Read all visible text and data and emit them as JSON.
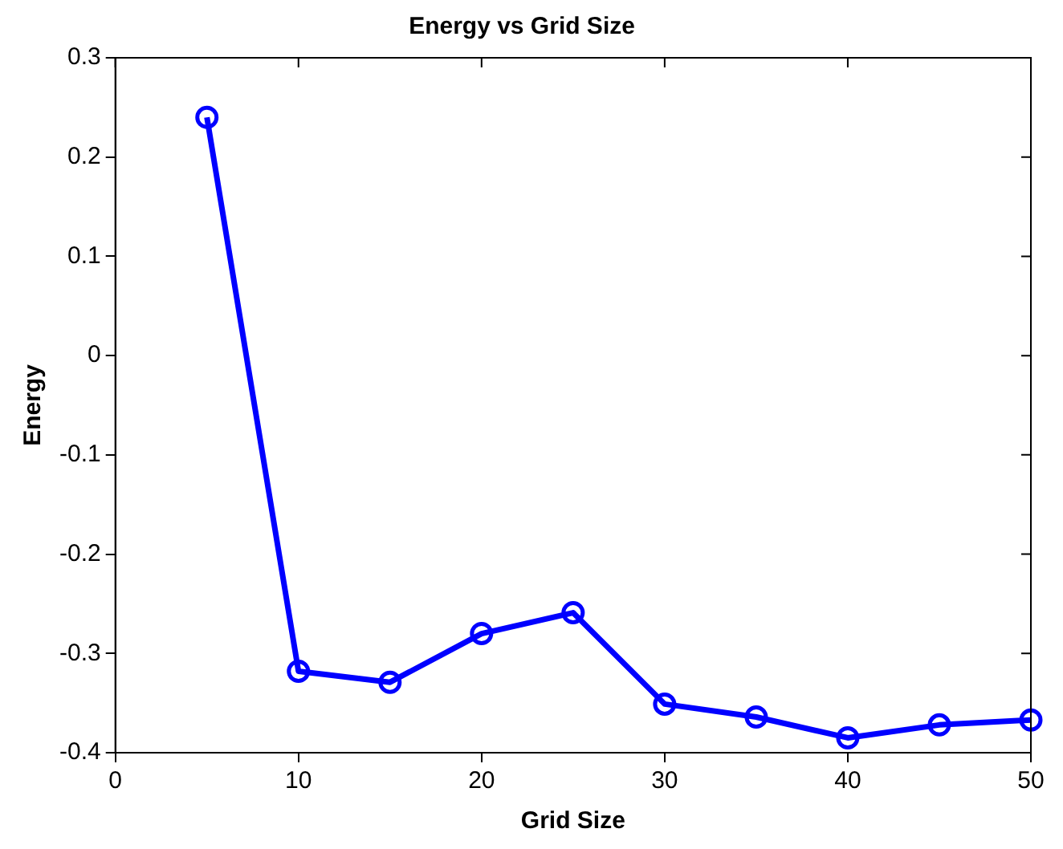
{
  "chart_data": {
    "type": "line",
    "title": "Energy vs Grid Size",
    "xlabel": "Grid Size",
    "ylabel": "Energy",
    "x": [
      5,
      10,
      15,
      20,
      25,
      30,
      35,
      40,
      45,
      50
    ],
    "series": [
      {
        "color": "#0000ff",
        "values": [
          0.24,
          -0.318,
          -0.329,
          -0.28,
          -0.259,
          -0.351,
          -0.364,
          -0.385,
          -0.372,
          -0.367
        ]
      }
    ],
    "xlim": [
      0,
      50
    ],
    "xticks": [
      0,
      10,
      20,
      30,
      40,
      50
    ],
    "ylim": [
      -0.4,
      0.3
    ],
    "yticks": [
      -0.4,
      -0.3,
      -0.2,
      -0.1,
      0,
      0.1,
      0.2,
      0.3
    ],
    "grid": false,
    "legend": false,
    "marker": "circle",
    "line_style": "solid"
  }
}
